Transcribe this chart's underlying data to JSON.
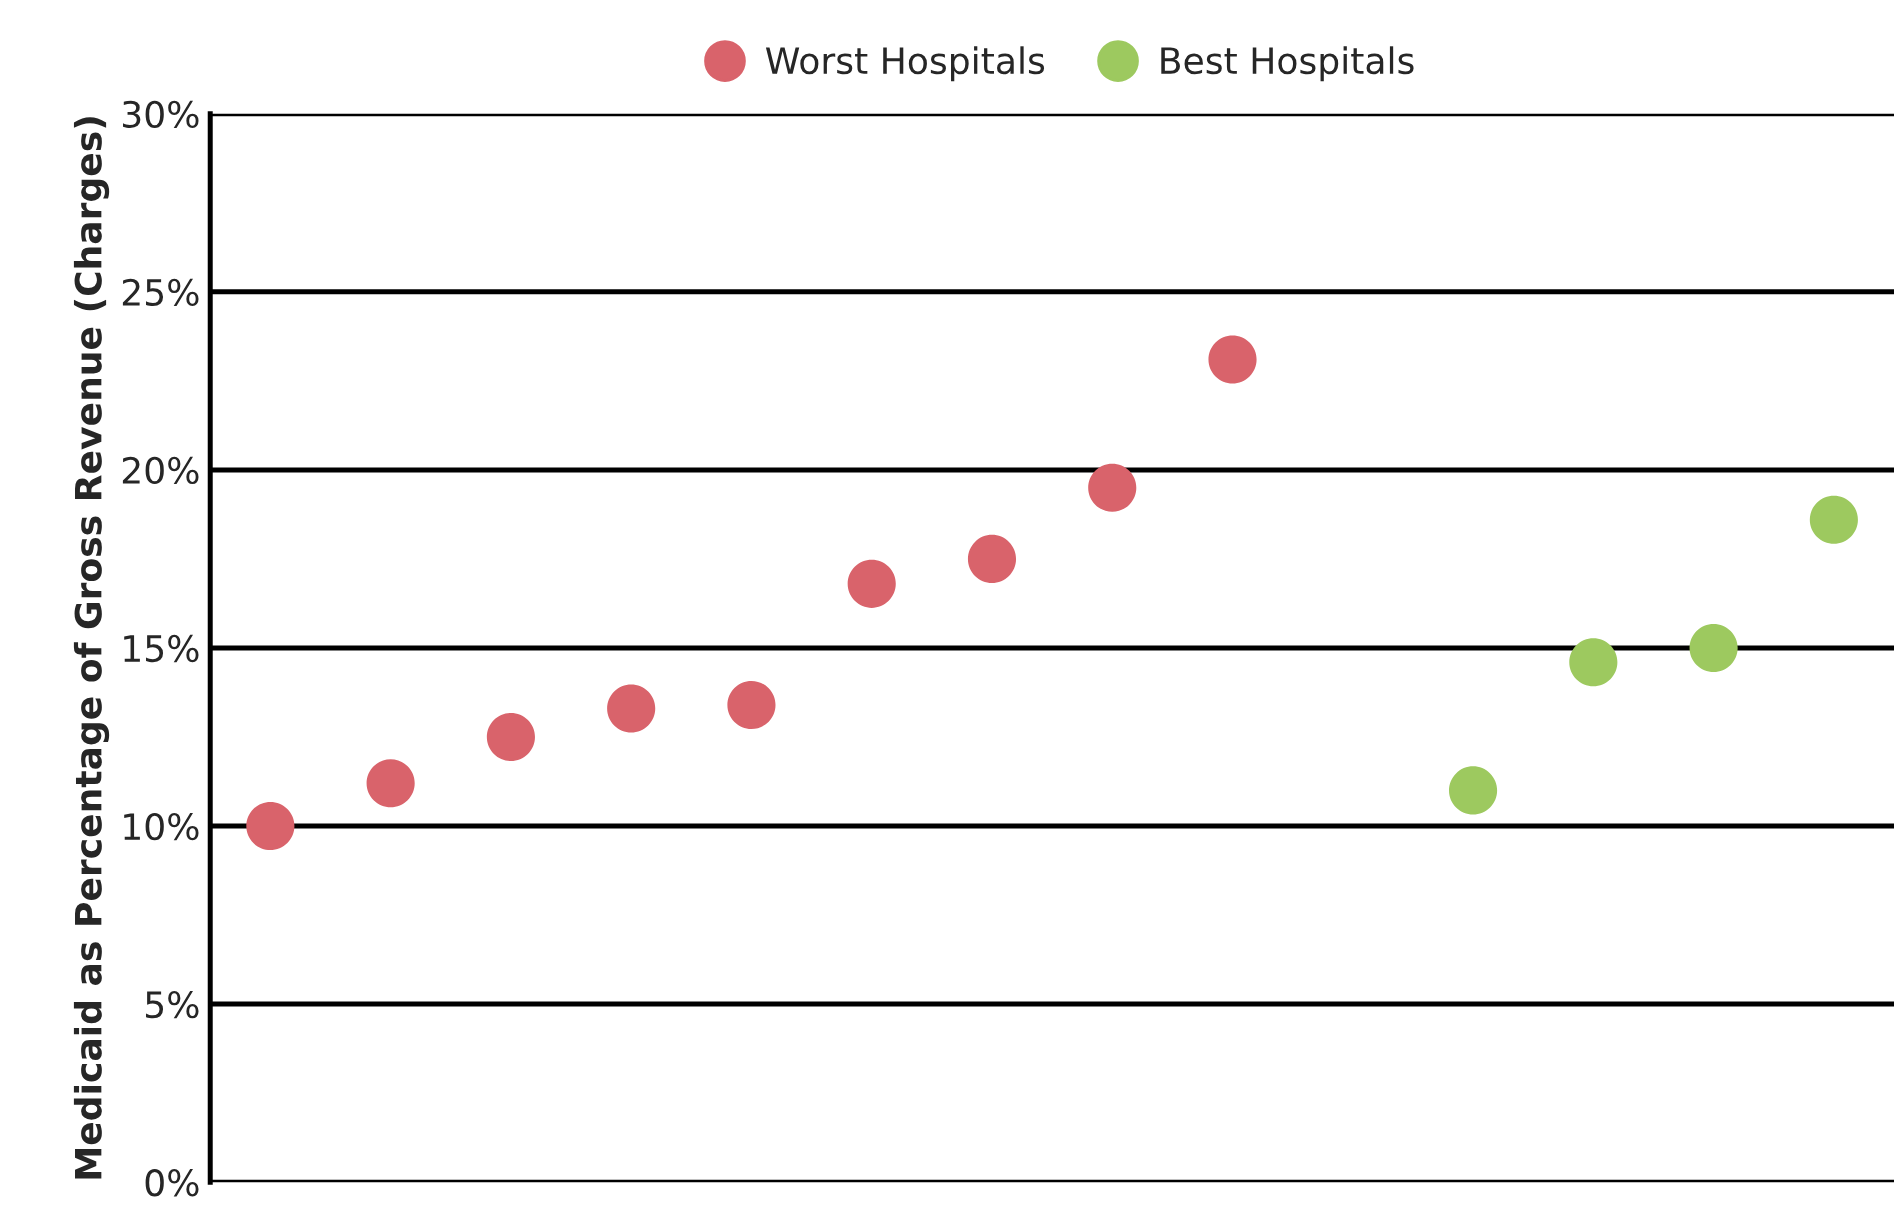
{
  "chart_data": {
    "type": "scatter",
    "ylabel": "Medicaid as Percentage of Gross Revenue (Charges)",
    "categories": [
      null,
      null,
      null,
      null,
      null,
      null,
      null,
      null,
      null,
      null,
      null,
      null,
      null,
      null
    ],
    "series": [
      {
        "name": "Worst Hospitals",
        "color": "#d9636b",
        "values": [
          10.0,
          11.2,
          12.5,
          13.3,
          13.4,
          16.8,
          17.5,
          19.5,
          23.1,
          null,
          null,
          null,
          null,
          null
        ]
      },
      {
        "name": "Best Hospitals",
        "color": "#9dc95f",
        "values": [
          null,
          null,
          null,
          null,
          null,
          null,
          null,
          null,
          null,
          null,
          11.0,
          14.6,
          15.0,
          18.6
        ]
      }
    ],
    "ylim": [
      0,
      30
    ],
    "yticks": [
      {
        "value": 0,
        "label": "0%"
      },
      {
        "value": 5,
        "label": "5%"
      },
      {
        "value": 10,
        "label": "10%"
      },
      {
        "value": 15,
        "label": "15%"
      },
      {
        "value": 20,
        "label": "20%"
      },
      {
        "value": 25,
        "label": "25%"
      },
      {
        "value": 30,
        "label": "30%"
      }
    ],
    "grid": "y",
    "legend": "top",
    "marker": "circle",
    "tick_labels": "y"
  }
}
